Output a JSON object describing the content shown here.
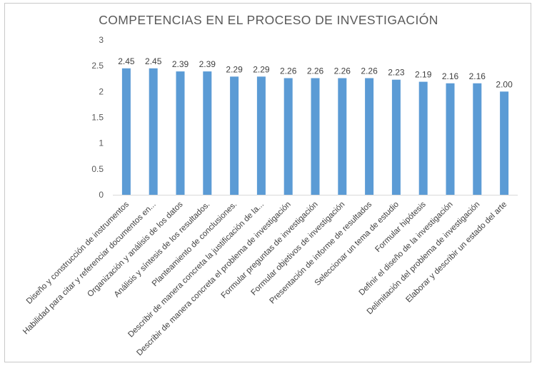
{
  "chart_data": {
    "type": "bar",
    "title": "COMPETENCIAS EN EL PROCESO DE INVESTIGACIÓN",
    "xlabel": "",
    "ylabel": "",
    "ylim": [
      0,
      3
    ],
    "yticks": [
      "0",
      "0.5",
      "1",
      "1.5",
      "2",
      "2.5",
      "3"
    ],
    "grid": false,
    "legend": "none",
    "bar_color": "#5b9bd5",
    "categories": [
      "Diseño y construcción de instrumentos",
      "Habilidad para citar y referenciar documentos  en...",
      "Organización y análisis de los datos",
      "Análisis y síntesis de los resultados.",
      "Planteamiento de conclusiones.",
      "Describir de manera concreta la justificación de la...",
      "Describir de manera concreta el problema de investigación",
      "Formular preguntas de investigación",
      "Formular objetivos de investigación",
      "Presentación de informe de resultados",
      "Seleccionar un tema de estudio",
      "Formular hipótesis",
      "Definir el diseño de la investigación",
      "Delimitación del problema de investigación",
      "Elaborar y describir un estado del arte"
    ],
    "values": [
      2.45,
      2.45,
      2.39,
      2.39,
      2.29,
      2.29,
      2.26,
      2.26,
      2.26,
      2.26,
      2.23,
      2.19,
      2.16,
      2.16,
      2.0
    ],
    "data_labels": [
      "2.45",
      "2.45",
      "2.39",
      "2.39",
      "2.29",
      "2.29",
      "2.26",
      "2.26",
      "2.26",
      "2.26",
      "2.23",
      "2.19",
      "2.16",
      "2.16",
      "2.00"
    ]
  }
}
